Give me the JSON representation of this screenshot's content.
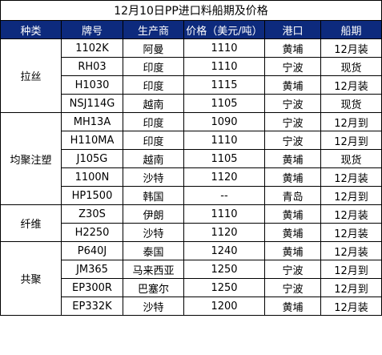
{
  "title": "12月10日PP进口料船期及价格",
  "headers": [
    "种类",
    "牌号",
    "生产商",
    "价格（美元/吨）",
    "港口",
    "船期"
  ],
  "colors": {
    "header_bg": "#0d2a7d",
    "header_text": "#ffffff",
    "border": "#000000"
  },
  "groups": [
    {
      "category": "拉丝",
      "rows": [
        [
          "1102K",
          "阿曼",
          "1110",
          "黄埔",
          "12月装"
        ],
        [
          "RH03",
          "印度",
          "1110",
          "宁波",
          "现货"
        ],
        [
          "H1030",
          "印度",
          "1115",
          "黄埔",
          "12月装"
        ],
        [
          "NSJ114G",
          "越南",
          "1105",
          "宁波",
          "现货"
        ]
      ]
    },
    {
      "category": "均聚注塑",
      "rows": [
        [
          "MH13A",
          "印度",
          "1090",
          "宁波",
          "12月到"
        ],
        [
          "H110MA",
          "印度",
          "1110",
          "宁波",
          "12月到"
        ],
        [
          "J105G",
          "越南",
          "1105",
          "黄埔",
          "现货"
        ],
        [
          "1100N",
          "沙特",
          "1120",
          "黄埔",
          "12月装"
        ],
        [
          "HP1500",
          "韩国",
          "--",
          "青岛",
          "12月到"
        ]
      ]
    },
    {
      "category": "纤维",
      "rows": [
        [
          "Z30S",
          "伊朗",
          "1110",
          "黄埔",
          "12月装"
        ],
        [
          "H2250",
          "沙特",
          "1120",
          "黄埔",
          "12月装"
        ]
      ]
    },
    {
      "category": "共聚",
      "rows": [
        [
          "P640J",
          "泰国",
          "1240",
          "黄埔",
          "12月装"
        ],
        [
          "JM365",
          "马来西亚",
          "1250",
          "宁波",
          "12月到"
        ],
        [
          "EP300R",
          "巴塞尔",
          "1250",
          "宁波",
          "12月到"
        ],
        [
          "EP332K",
          "沙特",
          "1200",
          "黄埔",
          "12月装"
        ]
      ]
    }
  ]
}
